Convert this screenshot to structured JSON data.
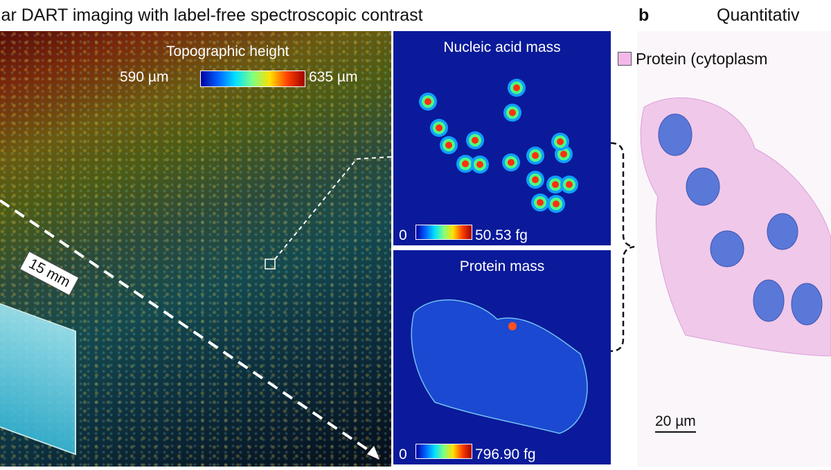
{
  "panel_a": {
    "title": "lar DART imaging with label-free spectroscopic contrast",
    "topography": {
      "label": "Topographic height",
      "min": "590 µm",
      "max": "635 µm",
      "colormap": "jet",
      "scale": "15 mm"
    },
    "nucleic_acid": {
      "title": "Nucleic acid mass",
      "min": "0",
      "max": "50.53 fg"
    },
    "protein": {
      "title": "Protein mass",
      "min": "0",
      "max": "796.90 fg"
    }
  },
  "panel_b": {
    "label": "b",
    "title": "Quantitativ",
    "legend": "Protein (cytoplasm",
    "legend_color": "#f2b8ea",
    "nucleus_color": "#5a78d8",
    "scale": "20 µm"
  }
}
